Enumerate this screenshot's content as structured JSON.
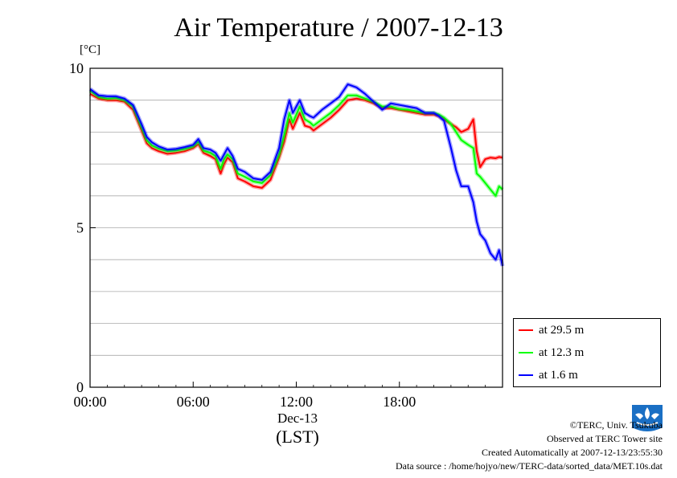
{
  "title": "Air Temperature / 2007-12-13",
  "unit_label": "[°C]",
  "date_label": "Dec-13",
  "timezone_label": "(LST)",
  "footer": {
    "copyright": "©TERC, Univ. Tsukuba",
    "observed": "Observed at TERC Tower site",
    "created": "Created Automatically at 2007-12-13/23:55:30",
    "source": "Data source : /home/hojyo/new/TERC-data/sorted_data/MET.10s.dat"
  },
  "chart_data": {
    "type": "line",
    "title": "Air Temperature / 2007-12-13",
    "xlabel": "(LST)",
    "ylabel": "[°C]",
    "x_unit": "hours",
    "xlim": [
      0,
      24
    ],
    "ylim": [
      0,
      10
    ],
    "x_ticks": [
      {
        "value": 0,
        "label": "00:00"
      },
      {
        "value": 6,
        "label": "06:00"
      },
      {
        "value": 12,
        "label": "12:00"
      },
      {
        "value": 18,
        "label": "18:00"
      }
    ],
    "y_ticks": [
      {
        "value": 0,
        "label": "0"
      },
      {
        "value": 5,
        "label": "5"
      },
      {
        "value": 10,
        "label": "10"
      }
    ],
    "y_gridlines": [
      1,
      2,
      3,
      4,
      5,
      6,
      7,
      8,
      9
    ],
    "grid": true,
    "legend_position": "bottom-right",
    "x": [
      0,
      0.5,
      1,
      1.5,
      2,
      2.5,
      3,
      3.3,
      3.6,
      4,
      4.5,
      5,
      5.5,
      6,
      6.3,
      6.6,
      7,
      7.3,
      7.6,
      7.8,
      8,
      8.3,
      8.6,
      9,
      9.5,
      10,
      10.5,
      11,
      11.3,
      11.6,
      11.8,
      12,
      12.2,
      12.5,
      12.8,
      13,
      13.5,
      14,
      14.5,
      15,
      15.5,
      16,
      16.5,
      17,
      17.5,
      18,
      18.5,
      19,
      19.5,
      20,
      20.3,
      20.6,
      21,
      21.3,
      21.6,
      22,
      22.3,
      22.5,
      22.7,
      23,
      23.3,
      23.6,
      23.8,
      24
    ],
    "series": [
      {
        "name": "at 29.5 m",
        "color": "#ff0000",
        "values": [
          9.2,
          9.05,
          9.0,
          9.0,
          8.95,
          8.7,
          8.05,
          7.65,
          7.5,
          7.4,
          7.32,
          7.35,
          7.4,
          7.5,
          7.62,
          7.35,
          7.25,
          7.15,
          6.7,
          7.0,
          7.2,
          7.05,
          6.55,
          6.45,
          6.3,
          6.25,
          6.5,
          7.2,
          7.7,
          8.4,
          8.1,
          8.35,
          8.6,
          8.2,
          8.15,
          8.05,
          8.25,
          8.45,
          8.7,
          9.0,
          9.05,
          9.0,
          8.9,
          8.75,
          8.75,
          8.7,
          8.65,
          8.6,
          8.55,
          8.55,
          8.5,
          8.4,
          8.25,
          8.15,
          8.0,
          8.1,
          8.4,
          7.4,
          6.9,
          7.15,
          7.2,
          7.18,
          7.22,
          7.2
        ]
      },
      {
        "name": "at 12.3 m",
        "color": "#00ff00",
        "values": [
          9.3,
          9.1,
          9.05,
          9.07,
          9.0,
          8.8,
          8.15,
          7.75,
          7.58,
          7.48,
          7.4,
          7.42,
          7.47,
          7.55,
          7.7,
          7.42,
          7.35,
          7.25,
          6.85,
          7.15,
          7.3,
          7.15,
          6.7,
          6.6,
          6.45,
          6.4,
          6.65,
          7.3,
          7.9,
          8.6,
          8.3,
          8.55,
          8.8,
          8.4,
          8.3,
          8.2,
          8.4,
          8.6,
          8.85,
          9.15,
          9.15,
          9.05,
          8.95,
          8.8,
          8.8,
          8.72,
          8.7,
          8.65,
          8.6,
          8.6,
          8.55,
          8.45,
          8.25,
          8.0,
          7.75,
          7.6,
          7.5,
          6.7,
          6.6,
          6.4,
          6.2,
          6.0,
          6.3,
          6.2
        ]
      },
      {
        "name": "at 1.6 m",
        "color": "#0000ff",
        "values": [
          9.35,
          9.15,
          9.12,
          9.12,
          9.05,
          8.85,
          8.25,
          7.85,
          7.68,
          7.55,
          7.45,
          7.47,
          7.53,
          7.6,
          7.78,
          7.5,
          7.45,
          7.35,
          7.1,
          7.3,
          7.5,
          7.25,
          6.85,
          6.75,
          6.55,
          6.5,
          6.75,
          7.5,
          8.4,
          9.0,
          8.6,
          8.8,
          9.0,
          8.6,
          8.5,
          8.45,
          8.7,
          8.9,
          9.1,
          9.5,
          9.4,
          9.2,
          8.95,
          8.7,
          8.9,
          8.85,
          8.8,
          8.75,
          8.6,
          8.6,
          8.5,
          8.35,
          7.5,
          6.8,
          6.3,
          6.3,
          5.8,
          5.2,
          4.8,
          4.6,
          4.2,
          4.0,
          4.3,
          3.8
        ]
      }
    ]
  }
}
